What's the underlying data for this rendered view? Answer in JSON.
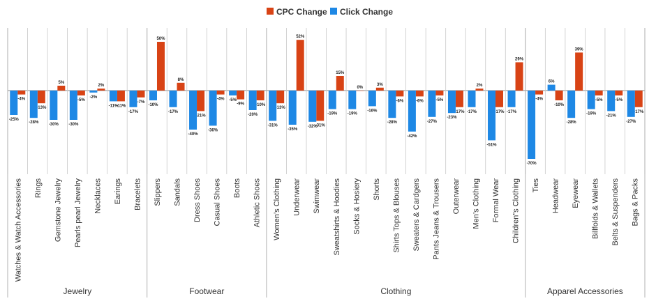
{
  "chart_data": {
    "type": "bar",
    "orientation": "vertical",
    "legend_position": "top-center",
    "grid": false,
    "ylim": [
      -85,
      57
    ],
    "series": [
      {
        "name": "CPC Change",
        "color": "#d84315",
        "values": [
          -4,
          -13,
          5,
          -5,
          2,
          -11,
          -7,
          50,
          8,
          -21,
          -4,
          -9,
          -10,
          -13,
          52,
          -31,
          15,
          0,
          3,
          -6,
          -6,
          -5,
          -17,
          2,
          -17,
          29,
          -4,
          -10,
          39,
          -5,
          -5,
          -17
        ],
        "labels": [
          "-4%",
          "-13%",
          "5%",
          "-5%",
          "2%",
          "-11%",
          "-7%",
          "50%",
          "8%",
          "-21%",
          "-4%",
          "-9%",
          "-10%",
          "-13%",
          "52%",
          "-31%",
          "15%",
          "0%",
          "3%",
          "-6%",
          "-6%",
          "-5%",
          "-17%",
          "2%",
          "-17%",
          "29%",
          "-4%",
          "-10%",
          "39%",
          "-5%",
          "-5%",
          "-17%"
        ]
      },
      {
        "name": "Click Change",
        "color": "#1e88e5",
        "values": [
          -25,
          -28,
          -30,
          -30,
          -2,
          -11,
          -17,
          -10,
          -17,
          -40,
          -36,
          -5,
          -20,
          -31,
          -35,
          -32,
          -19,
          -19,
          -16,
          -28,
          -42,
          -27,
          -23,
          -17,
          -51,
          -17,
          -70,
          6,
          -28,
          -19,
          -21,
          -27
        ],
        "labels": [
          "-25%",
          "-28%",
          "-30%",
          "-30%",
          "-2%",
          "-11%",
          "-17%",
          "-10%",
          "-17%",
          "-40%",
          "-36%",
          "-5%",
          "-20%",
          "-31%",
          "-35%",
          "-32%",
          "-19%",
          "-19%",
          "-16%",
          "-28%",
          "-42%",
          "-27%",
          "-23%",
          "-17%",
          "-51%",
          "-17%",
          "-70%",
          "6%",
          "-28%",
          "-19%",
          "-21%",
          "-27%"
        ]
      }
    ],
    "categories": [
      "Watches & Watch Accessories",
      "Rings",
      "Gemstone Jewelry",
      "Pearls pearl Jewelry",
      "Necklaces",
      "Earings",
      "Bracelets",
      "Slippers",
      "Sandals",
      "Dress Shoes",
      "Casual Shoes",
      "Boots",
      "Athletic Shoes",
      "Women’s Clothing",
      "Underwear",
      "Swimwear",
      "Sweatshirts & Hoodies",
      "Socks & Hosiery",
      "Shorts",
      "Shirts Tops & Blouses",
      "Sweaters & Cardgers",
      "Pants Jeans & Trousers",
      "Outerwear",
      "Men’s Clothing",
      "Formal Wear",
      "Children”s Clothing",
      "Ties",
      "Headwear",
      "Eyewear",
      "Billfolds & Wallets",
      "Belts & Suspenders",
      "Bags & Packs"
    ],
    "groups": [
      {
        "name": "Jewelry",
        "count": 7
      },
      {
        "name": "Footwear",
        "count": 6
      },
      {
        "name": "Clothing",
        "count": 13
      },
      {
        "name": "Apparel Accessories",
        "count": 6
      }
    ]
  }
}
